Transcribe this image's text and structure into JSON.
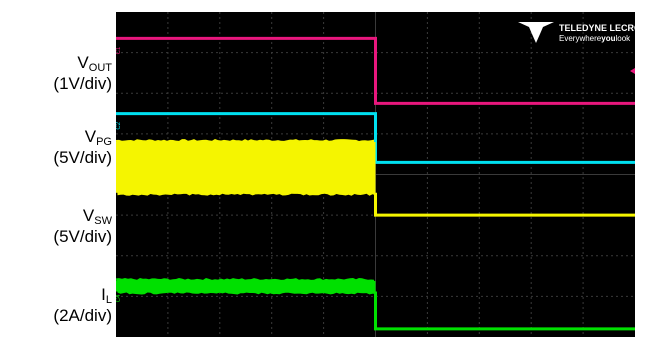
{
  "labels": [
    {
      "id": "vout",
      "main": "V",
      "sub": "OUT",
      "scale": "(1V/div)",
      "top": 0
    },
    {
      "id": "vpg",
      "main": "V",
      "sub": "PG",
      "scale": "(5V/div)",
      "top": 0
    },
    {
      "id": "vsw",
      "main": "V",
      "sub": "SW",
      "scale": "(5V/div)",
      "top": 0
    },
    {
      "id": "il",
      "main": "I",
      "sub": "L",
      "scale": "(2A/div)",
      "top": 0
    }
  ],
  "brand": {
    "name": "TELEDYNE LECROY",
    "tagline_pre": "Everywhere",
    "tagline_bold": "you",
    "tagline_post": "look"
  },
  "chart_data": {
    "type": "line",
    "x_divisions": 10,
    "y_divisions": 8,
    "event_time_div": 5.0,
    "series": [
      {
        "name": "V_OUT",
        "channel": "C1",
        "color": "#e8177d",
        "before_div": 7.35,
        "after_div": 5.75
      },
      {
        "name": "V_PG",
        "channel": "C2",
        "color": "#00e0f0",
        "before_div": 5.5,
        "after_div": 4.3
      },
      {
        "name": "V_SW",
        "channel": "C3",
        "color": "#f5f500",
        "band_div": [
          3.55,
          4.8
        ],
        "after_div": 3.0
      },
      {
        "name": "I_L",
        "channel": "C4",
        "color": "#00e000",
        "band_div": [
          1.12,
          1.38
        ],
        "after_div": 0.2
      }
    ]
  }
}
